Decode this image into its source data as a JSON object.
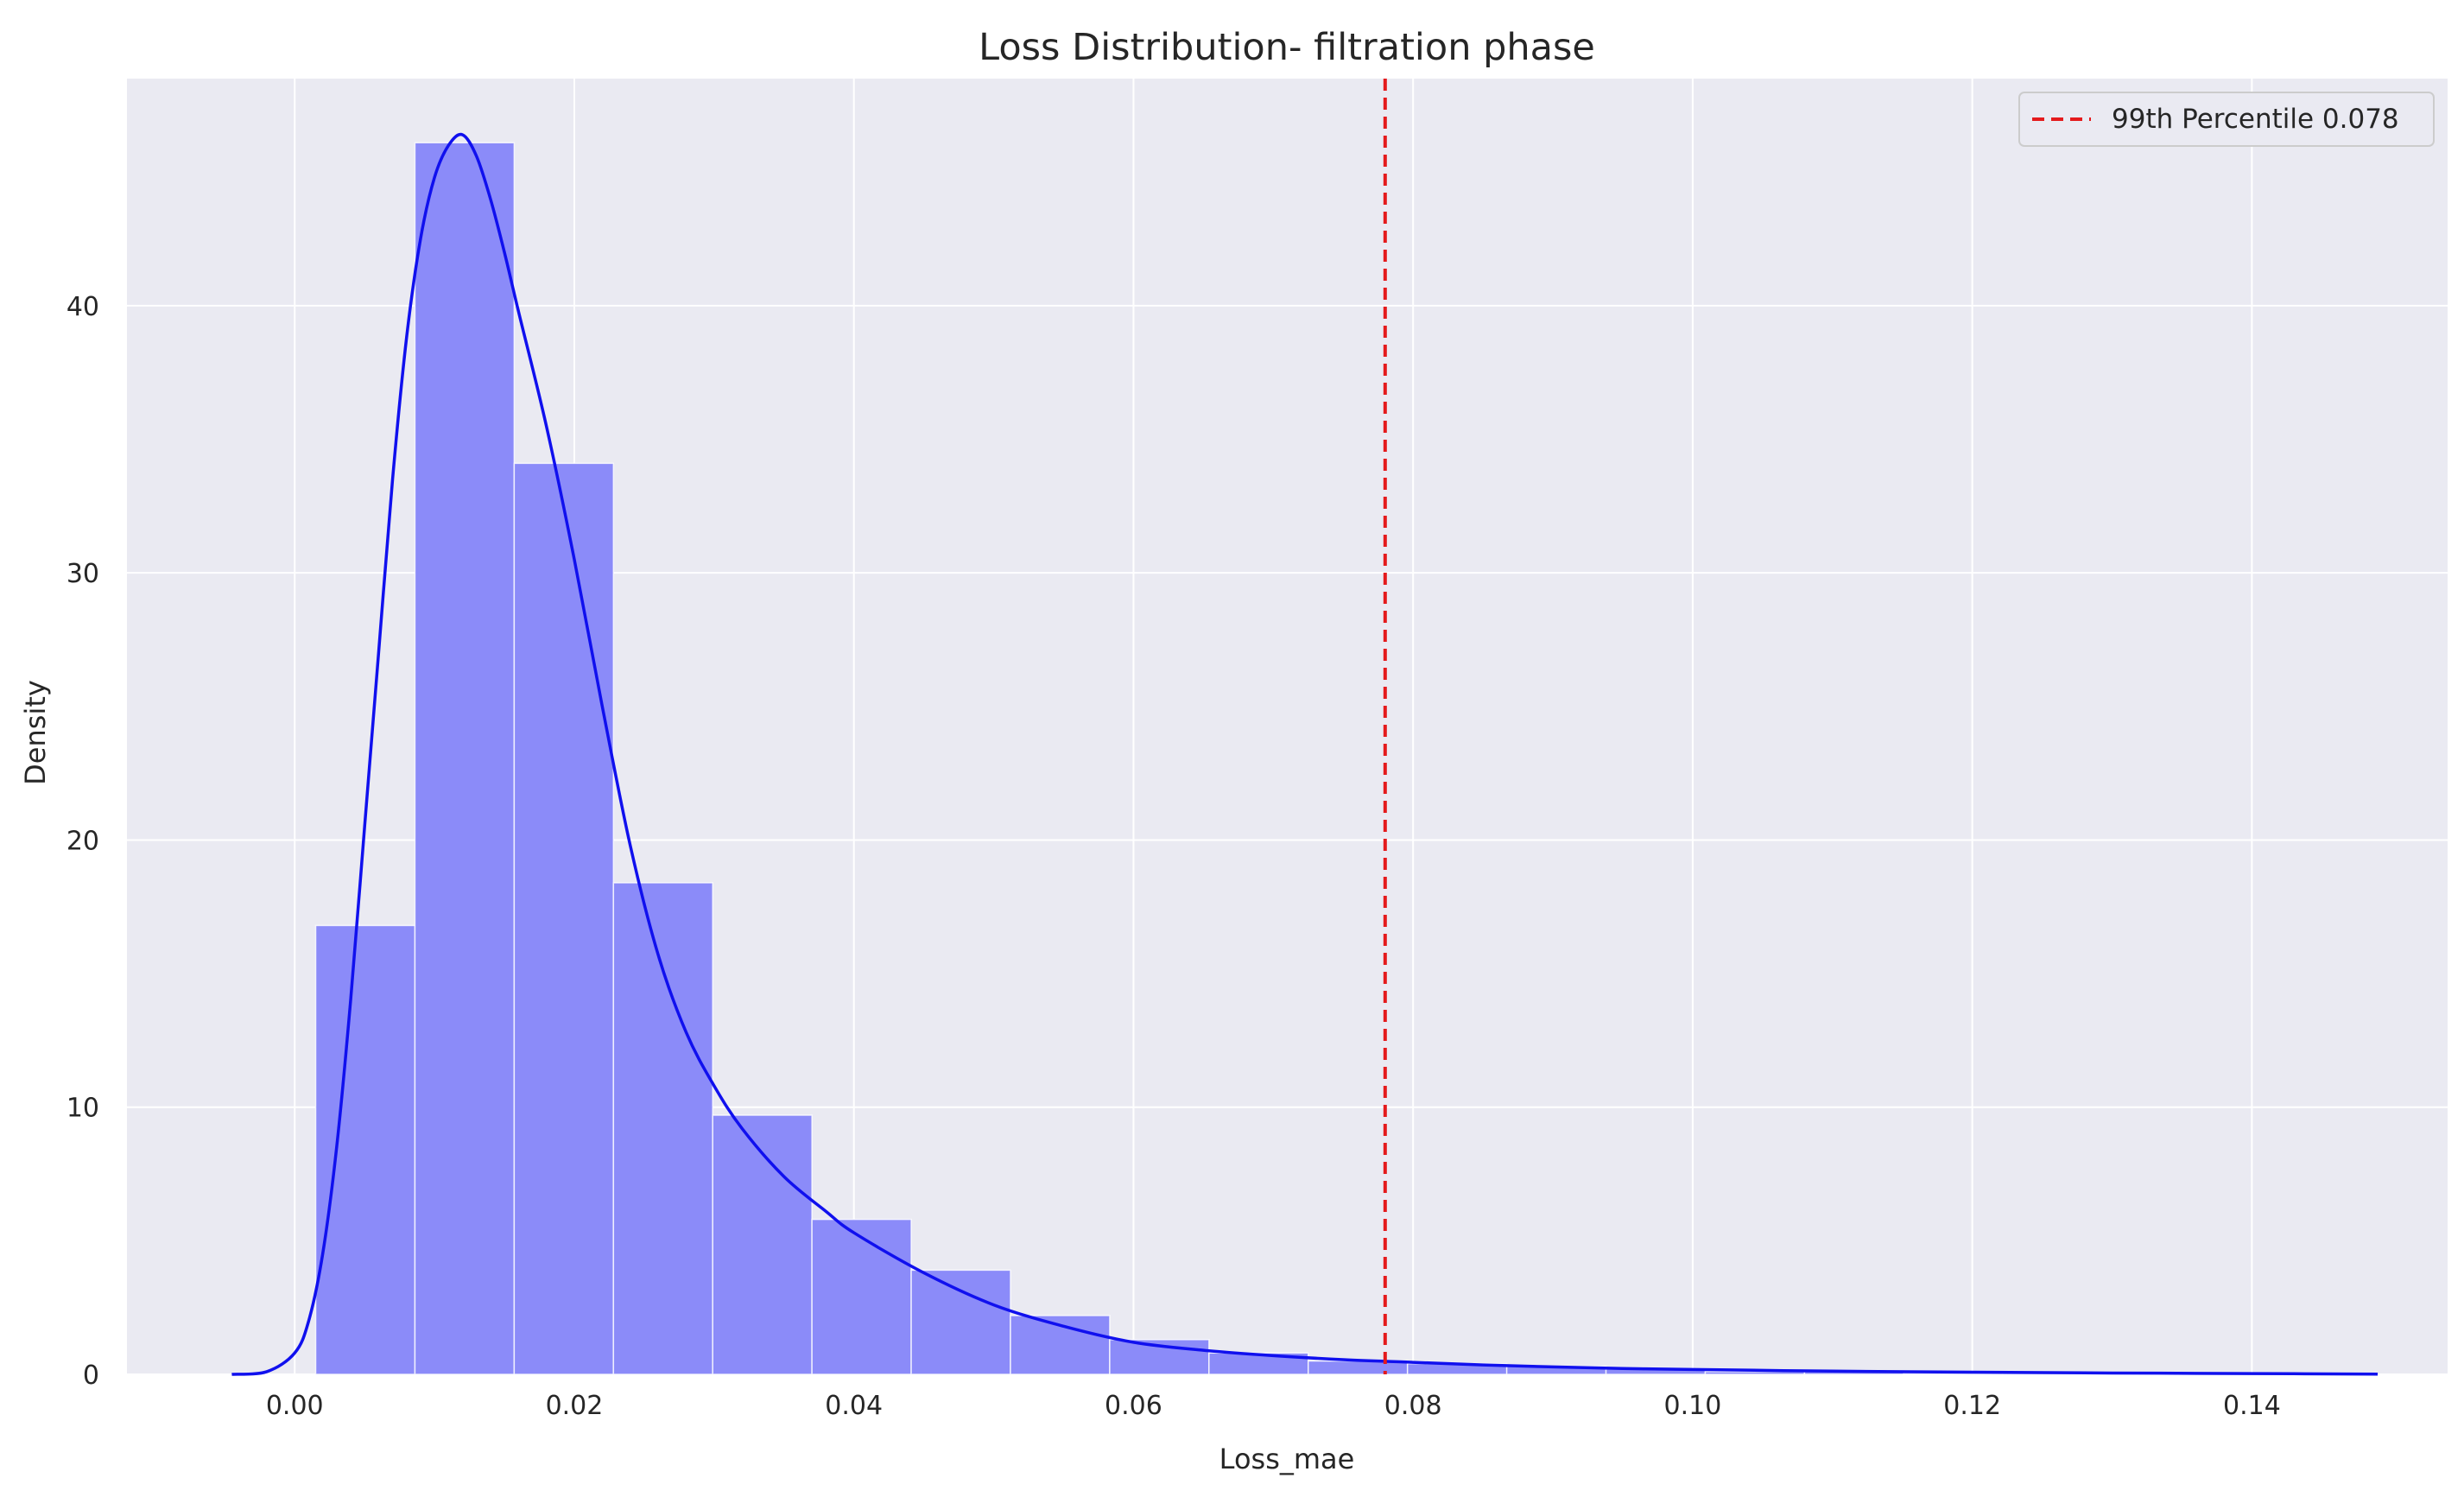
{
  "chart_data": {
    "type": "histogram",
    "title": "Loss Distribution- filtration phase",
    "xlabel": "Loss_mae",
    "ylabel": "Density",
    "xlim": [
      -0.012,
      0.154
    ],
    "ylim": [
      0,
      48.5
    ],
    "x_ticks": [
      0.0,
      0.02,
      0.04,
      0.06,
      0.08,
      0.1,
      0.12,
      0.14
    ],
    "x_tick_labels": [
      "0.00",
      "0.02",
      "0.04",
      "0.06",
      "0.08",
      "0.10",
      "0.12",
      "0.14"
    ],
    "y_ticks": [
      0,
      10,
      20,
      30,
      40
    ],
    "y_tick_labels": [
      "0",
      "10",
      "20",
      "30",
      "40"
    ],
    "grid": true,
    "bin_edges": [
      0.0015,
      0.0086,
      0.0157,
      0.0228,
      0.0299,
      0.037,
      0.0441,
      0.0512,
      0.0583,
      0.0654,
      0.0725,
      0.0796,
      0.0867,
      0.0938,
      0.1009,
      0.108,
      0.1151,
      0.1222,
      0.1293,
      0.1364,
      0.1435
    ],
    "bin_values": [
      16.8,
      46.1,
      34.1,
      18.4,
      9.7,
      5.8,
      3.9,
      2.2,
      1.3,
      0.8,
      0.5,
      0.4,
      0.3,
      0.2,
      0.1,
      0.1,
      0.05,
      0.05,
      0.03,
      0.02
    ],
    "kde": {
      "x": [
        -0.0045,
        -0.002,
        0.0,
        0.001,
        0.002,
        0.003,
        0.004,
        0.005,
        0.006,
        0.007,
        0.008,
        0.009,
        0.01,
        0.011,
        0.012,
        0.013,
        0.014,
        0.015,
        0.016,
        0.018,
        0.02,
        0.022,
        0.024,
        0.026,
        0.028,
        0.03,
        0.032,
        0.035,
        0.038,
        0.04,
        0.045,
        0.05,
        0.055,
        0.06,
        0.065,
        0.07,
        0.075,
        0.08,
        0.085,
        0.09,
        0.095,
        0.1,
        0.11,
        0.12,
        0.13,
        0.14,
        0.149
      ],
      "y": [
        0,
        0.1,
        0.8,
        2.0,
        4.5,
        8.5,
        14.0,
        20.5,
        27.0,
        33.5,
        38.8,
        42.5,
        44.8,
        46.0,
        46.4,
        45.6,
        44.0,
        42.0,
        39.8,
        35.5,
        30.5,
        25.0,
        19.8,
        15.7,
        12.8,
        10.8,
        9.2,
        7.4,
        6.1,
        5.3,
        3.8,
        2.6,
        1.8,
        1.2,
        0.9,
        0.7,
        0.55,
        0.45,
        0.35,
        0.28,
        0.22,
        0.18,
        0.12,
        0.08,
        0.05,
        0.03,
        0.01
      ]
    },
    "reference_line": {
      "x": 0.078,
      "label": "99th Percentile 0.078",
      "color": "#e41a1c",
      "style": "dashed"
    },
    "legend": {
      "placement": "top-right",
      "entries": [
        "99th Percentile 0.078"
      ]
    },
    "colors": {
      "bar_fill": "#8b8bf9",
      "bar_edge": "#ffffff",
      "kde_line": "#1010ee",
      "plot_bg": "#eaeaf2",
      "grid": "#ffffff",
      "text": "#262626"
    }
  }
}
